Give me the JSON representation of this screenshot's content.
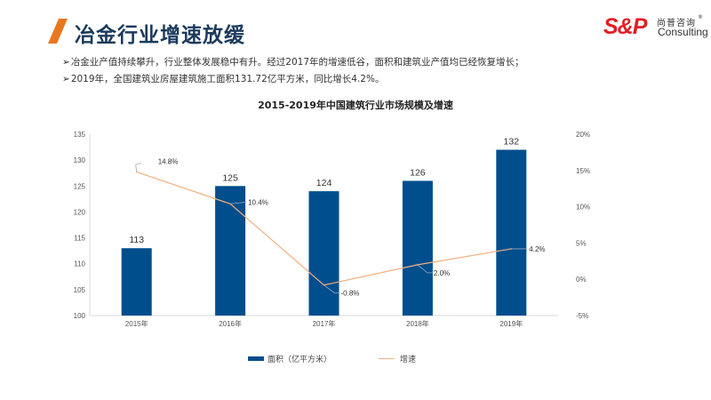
{
  "header": {
    "title": "冶金行业增速放缓",
    "accent_color": "#e87722",
    "title_color": "#1b3a5c"
  },
  "logo": {
    "mark": "S&P",
    "chinese_name": "尚普咨询",
    "registered": "®",
    "english_name": "Consulting",
    "color": "#e31e24"
  },
  "bullets": [
    {
      "marker": "➢",
      "text": "冶金业产值持续攀升，行业整体发展稳中有升。经过2017年的增速低谷，面积和建筑业产值均已经恢复增长；"
    },
    {
      "marker": "➢",
      "text": "2019年，全国建筑业房屋建筑施工面积131.72亿平方米，同比增长4.2%。"
    }
  ],
  "chart_data": {
    "type": "bar",
    "title": "2015-2019年中国建筑行业市场规模及增速",
    "categories": [
      "2015年",
      "2016年",
      "2017年",
      "2018年",
      "2019年"
    ],
    "series": [
      {
        "name": "面积（亿平方米）",
        "type": "bar",
        "axis": "left",
        "color": "#004e8c",
        "values": [
          113,
          125,
          124,
          126,
          132
        ],
        "labels": [
          "113",
          "125",
          "124",
          "126",
          "132"
        ]
      },
      {
        "name": "增速",
        "type": "line",
        "axis": "right",
        "color": "#f0b080",
        "values": [
          14.8,
          10.4,
          -0.8,
          2.0,
          4.2
        ],
        "labels": [
          "14.8%",
          "10.4%",
          "-0.8%",
          "2.0%",
          "4.2%"
        ]
      }
    ],
    "left_axis": {
      "ylim": [
        100,
        135
      ],
      "ticks": [
        100,
        105,
        110,
        115,
        120,
        125,
        130,
        135
      ],
      "tick_labels": [
        "100",
        "105",
        "110",
        "115",
        "120",
        "125",
        "130",
        "135"
      ]
    },
    "right_axis": {
      "ylim": [
        -5,
        20
      ],
      "ticks": [
        -5,
        0,
        5,
        10,
        15,
        20
      ],
      "tick_labels": [
        "-5%",
        "0%",
        "5%",
        "10%",
        "15%",
        "20%"
      ]
    },
    "xlabel": "",
    "ylabel": "",
    "grid": false,
    "legend": "bottom"
  }
}
